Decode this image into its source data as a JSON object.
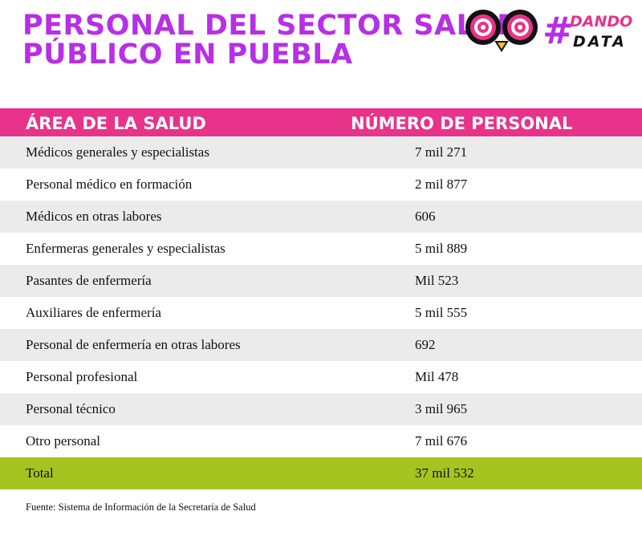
{
  "header": {
    "title_lines": [
      "PERSONAL DEL SECTOR SALUD",
      "PÚBLICO EN PUEBLA"
    ],
    "logo": {
      "hash": "#",
      "line1": "DANDO",
      "line2": "DATA"
    }
  },
  "table": {
    "columns": [
      "ÁREA DE LA SALUD",
      "NÚMERO DE PERSONAL"
    ],
    "rows": [
      [
        "Médicos generales y especialistas",
        "7 mil 271"
      ],
      [
        "Personal médico en formación",
        "2 mil 877"
      ],
      [
        "Médicos en otras labores",
        "606"
      ],
      [
        "Enfermeras generales y especialistas",
        "5 mil 889"
      ],
      [
        "Pasantes de enfermería",
        "Mil 523"
      ],
      [
        "Auxiliares de enfermería",
        "5 mil 555"
      ],
      [
        "Personal de enfermería en otras labores",
        "692"
      ],
      [
        "Personal profesional",
        "Mil 478"
      ],
      [
        "Personal técnico",
        "3 mil 965"
      ],
      [
        "Otro personal",
        "7 mil 676"
      ]
    ],
    "total": [
      "Total",
      "37 mil 532"
    ]
  },
  "source": "Fuente: Sistema de Información de la Secretaría de Salud"
}
